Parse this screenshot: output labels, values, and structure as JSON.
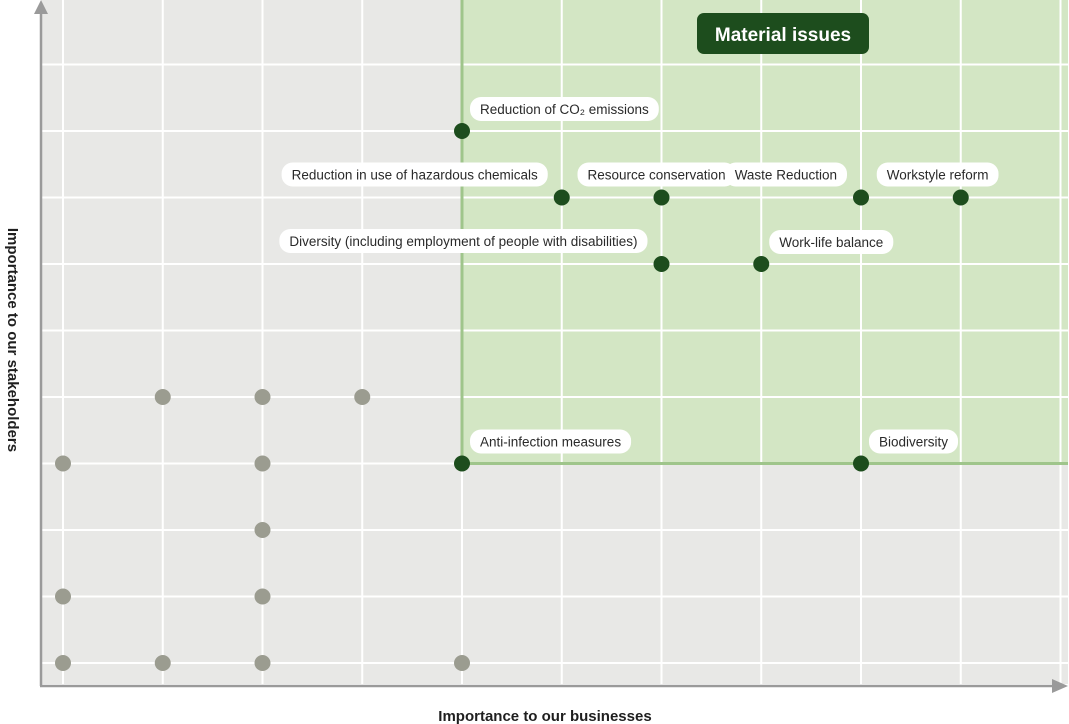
{
  "chart_data": {
    "type": "scatter",
    "xlabel": "Importance to our businesses",
    "ylabel": "Importance to our stakeholders",
    "xlim": [
      0,
      10
    ],
    "ylim": [
      -0.1,
      10
    ],
    "grid": true,
    "material_region": {
      "label": "Material issues",
      "x_min": 4,
      "y_min": 3
    },
    "colors": {
      "background": "#e8e8e6",
      "material_fill": "#d3e6c4",
      "material_border": "#9fc58b",
      "grid": "#ffffff",
      "material_point": "#1d4d1d",
      "other_point": "#9b9c90",
      "badge": "#1d4d1d",
      "axis": "#9a9a9a"
    },
    "material_points": [
      {
        "label": "Reduction of CO₂ emissions",
        "x": 4,
        "y": 8
      },
      {
        "label": "Reduction in use of hazardous chemicals",
        "x": 5,
        "y": 7
      },
      {
        "label": "Resource conservation",
        "x": 6,
        "y": 7
      },
      {
        "label": "Waste Reduction",
        "x": 8,
        "y": 7
      },
      {
        "label": "Workstyle reform",
        "x": 9,
        "y": 7
      },
      {
        "label": "Diversity (including employment of people with disabilities)",
        "x": 6,
        "y": 6
      },
      {
        "label": "Work-life balance",
        "x": 7,
        "y": 6
      },
      {
        "label": "Anti-infection measures",
        "x": 4,
        "y": 3
      },
      {
        "label": "Biodiversity",
        "x": 8,
        "y": 3
      }
    ],
    "other_points": [
      {
        "x": 1,
        "y": 4
      },
      {
        "x": 2,
        "y": 4
      },
      {
        "x": 3,
        "y": 4
      },
      {
        "x": 0,
        "y": 3
      },
      {
        "x": 2,
        "y": 3
      },
      {
        "x": 2,
        "y": 2
      },
      {
        "x": 0,
        "y": 1
      },
      {
        "x": 2,
        "y": 1
      },
      {
        "x": 0,
        "y": 0
      },
      {
        "x": 1,
        "y": 0
      },
      {
        "x": 2,
        "y": 0
      },
      {
        "x": 4,
        "y": 0
      }
    ]
  }
}
